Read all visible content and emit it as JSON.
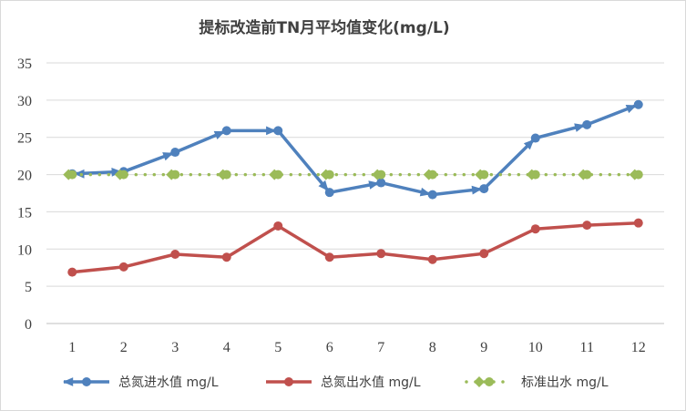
{
  "chart_data": {
    "type": "line",
    "title": "提标改造前TN月平均值变化(mg/L)",
    "xlabel": "",
    "ylabel": "",
    "categories": [
      "1",
      "2",
      "3",
      "4",
      "5",
      "6",
      "7",
      "8",
      "9",
      "10",
      "11",
      "12"
    ],
    "ylim": [
      0,
      35
    ],
    "yticks": [
      0,
      5,
      10,
      15,
      20,
      25,
      30,
      35
    ],
    "grid": true,
    "legend_position": "bottom",
    "series": [
      {
        "name": "总氮进水值 mg/L",
        "color": "#4f81bd",
        "style": "solid-arrow-circle",
        "values": [
          20.1,
          20.4,
          23.0,
          25.9,
          25.9,
          17.6,
          18.9,
          17.3,
          18.1,
          24.9,
          26.7,
          29.4
        ]
      },
      {
        "name": "总氮出水值 mg/L",
        "color": "#c0504d",
        "style": "solid-circle",
        "values": [
          6.9,
          7.6,
          9.3,
          8.9,
          13.1,
          8.9,
          9.4,
          8.6,
          9.4,
          12.7,
          13.2,
          13.5
        ]
      },
      {
        "name": "标准出水 mg/L",
        "color": "#9bbb59",
        "style": "dotted-diamond-circle",
        "values": [
          20,
          20,
          20,
          20,
          20,
          20,
          20,
          20,
          20,
          20,
          20,
          20
        ]
      }
    ]
  }
}
